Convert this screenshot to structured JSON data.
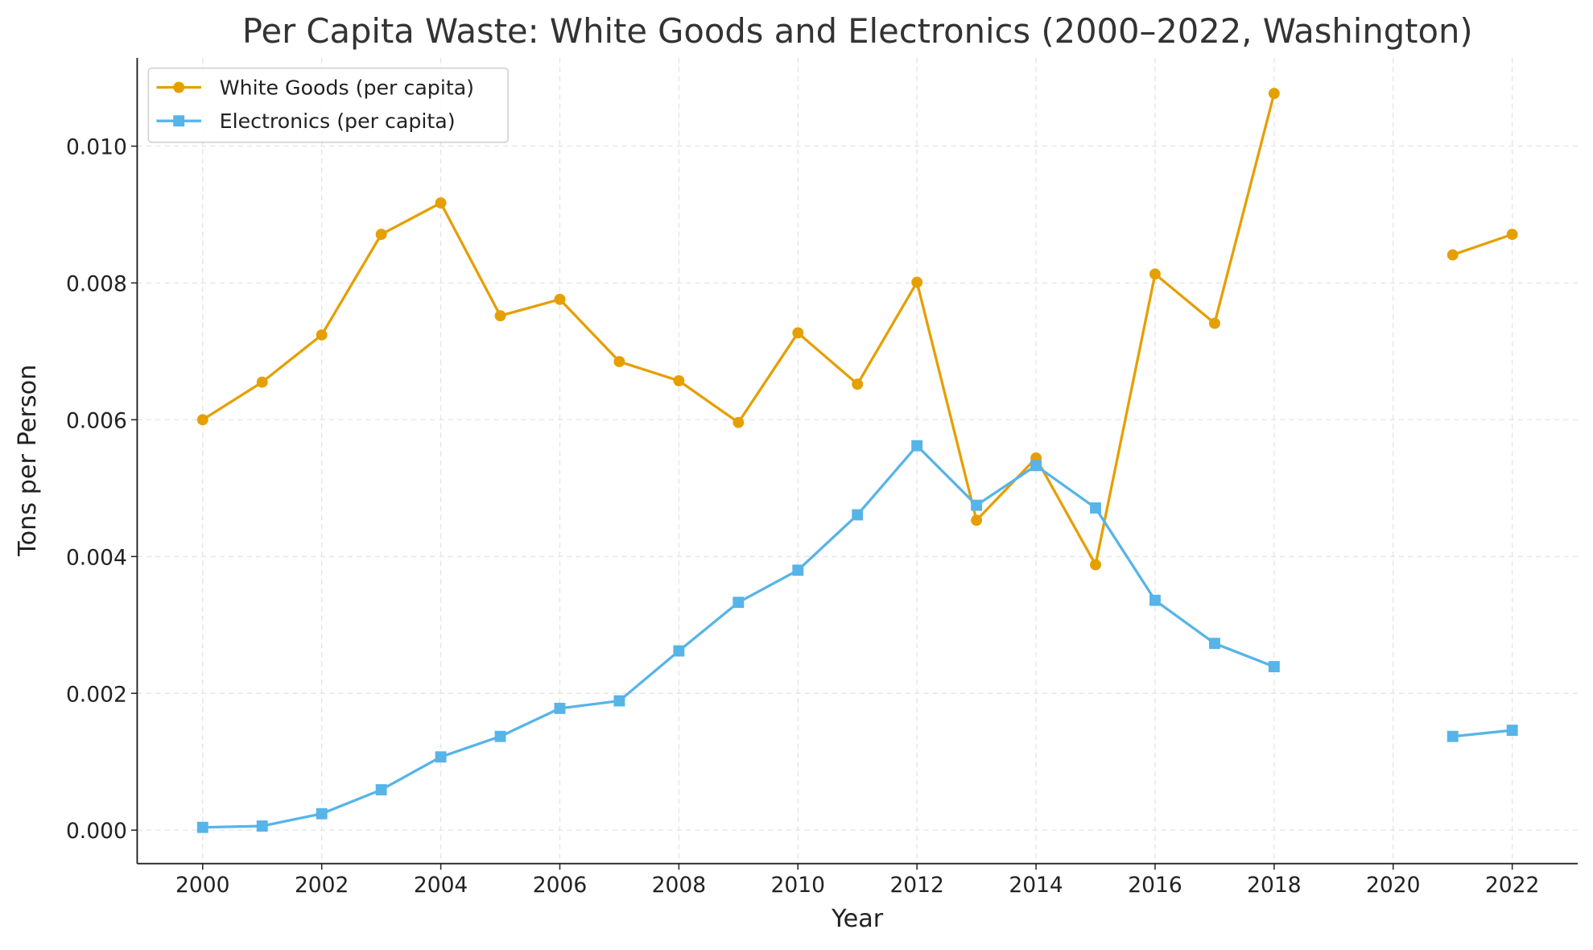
{
  "chart_data": {
    "type": "line",
    "title": "Per Capita Waste: White Goods and Electronics (2000–2022, Washington)",
    "xlabel": "Year",
    "ylabel": "Tons per Person",
    "xlim": [
      1998.9,
      2023.1
    ],
    "ylim": [
      -0.00049,
      0.01129
    ],
    "xticks": [
      2000,
      2002,
      2004,
      2006,
      2008,
      2010,
      2012,
      2014,
      2016,
      2018,
      2020,
      2022
    ],
    "xtick_labels": [
      "2000",
      "2002",
      "2004",
      "2006",
      "2008",
      "2010",
      "2012",
      "2014",
      "2016",
      "2018",
      "2020",
      "2022"
    ],
    "yticks": [
      0,
      0.002,
      0.004,
      0.006,
      0.008,
      0.01
    ],
    "ytick_labels": [
      "0.000",
      "0.002",
      "0.004",
      "0.006",
      "0.008",
      "0.010"
    ],
    "grid": true,
    "legend_position": "top-left",
    "x": [
      2000,
      2001,
      2002,
      2003,
      2004,
      2005,
      2006,
      2007,
      2008,
      2009,
      2010,
      2011,
      2012,
      2013,
      2014,
      2015,
      2016,
      2017,
      2018,
      2019,
      2020,
      2021,
      2022
    ],
    "series": [
      {
        "name": "White Goods (per capita)",
        "color": "#E69F00",
        "marker": "circle",
        "values": [
          0.006,
          0.00655,
          0.00724,
          0.00871,
          0.00917,
          0.00752,
          0.00776,
          0.00685,
          0.00657,
          0.00596,
          0.00727,
          0.00652,
          0.00801,
          0.00453,
          0.00544,
          0.00388,
          0.00813,
          0.00741,
          0.01077,
          null,
          null,
          0.00841,
          0.00871
        ]
      },
      {
        "name": "Electronics (per capita)",
        "color": "#56B4E9",
        "marker": "square",
        "values": [
          4e-05,
          6e-05,
          0.00024,
          0.00059,
          0.00107,
          0.00137,
          0.00178,
          0.00189,
          0.00262,
          0.00333,
          0.0038,
          0.00461,
          0.00562,
          0.00475,
          0.00533,
          0.00471,
          0.00336,
          0.00273,
          0.00239,
          null,
          null,
          0.00137,
          0.00146
        ]
      }
    ]
  }
}
